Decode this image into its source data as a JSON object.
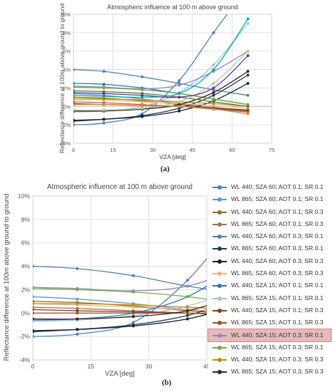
{
  "panel_labels": {
    "a": "(a)",
    "b": "(b)"
  },
  "chart_data": [
    {
      "id": "a",
      "type": "line",
      "title": "Atmospheric influence at 100 m above ground",
      "xlabel": "VZA [deg]",
      "ylabel": "Reflectance difference at 100m above ground to ground",
      "xlim": [
        0,
        75
      ],
      "ylim": [
        -0.04,
        0.1
      ],
      "xticks": [
        0,
        15,
        30,
        45,
        60,
        75
      ],
      "yticks": [
        -0.04,
        -0.02,
        0,
        0.02,
        0.04,
        0.06,
        0.08,
        0.1
      ],
      "xtick_labels": [
        "0",
        "15",
        "30",
        "45",
        "60",
        "75"
      ],
      "ytick_labels": [
        "-4%",
        "-2%",
        "0%",
        "2%",
        "4%",
        "6%",
        "8%",
        "10%"
      ],
      "grid": true,
      "x": [
        0,
        11.5,
        26,
        40,
        53,
        66
      ],
      "series": [
        {
          "color": "#4f81bd",
          "values": [
            0.04,
            0.038,
            0.032,
            0.025,
            0.018,
            0.012
          ]
        },
        {
          "color": "#5b9bd5",
          "values": [
            0.014,
            0.012,
            0.008,
            0.003,
            -0.001,
            -0.004
          ]
        },
        {
          "color": "#8a6d1f",
          "values": [
            0.01,
            0.009,
            0.006,
            0.002,
            -0.002,
            -0.005
          ]
        },
        {
          "color": "#b06a4b",
          "values": [
            0.005,
            0.004,
            0.002,
            0.0,
            -0.003,
            -0.006
          ]
        },
        {
          "color": "#4f81bd",
          "values": [
            -0.02,
            -0.018,
            -0.008,
            0.028,
            0.08,
            0.13
          ]
        },
        {
          "color": "#1f3864",
          "values": [
            -0.016,
            -0.014,
            -0.01,
            -0.002,
            0.012,
            0.034
          ]
        },
        {
          "color": "#17202e",
          "values": [
            -0.015,
            -0.014,
            -0.011,
            -0.005,
            0.006,
            0.025
          ]
        },
        {
          "color": "#f4b183",
          "values": [
            0.008,
            0.007,
            0.005,
            0.003,
            0.001,
            -0.002
          ]
        },
        {
          "color": "#2e75b6",
          "values": [
            0.025,
            0.024,
            0.02,
            0.014,
            0.008,
            0.002
          ]
        },
        {
          "color": "#9dc3e6",
          "values": [
            -0.006,
            -0.005,
            0.0,
            0.015,
            0.045,
            0.09
          ]
        },
        {
          "color": "#843c0c",
          "values": [
            0.003,
            0.002,
            0.001,
            0.0,
            -0.002,
            -0.004
          ]
        },
        {
          "color": "#8e86c4",
          "values": [
            0.022,
            0.021,
            0.019,
            0.023,
            0.038,
            0.06
          ]
        },
        {
          "color": "#70ad47",
          "values": [
            0.021,
            0.02,
            0.018,
            0.014,
            0.008,
            0.002
          ]
        },
        {
          "color": "#c09000",
          "values": [
            0.008,
            0.008,
            0.007,
            0.005,
            0.003,
            0.0
          ]
        },
        {
          "color": "#3b2318",
          "values": [
            -0.005,
            -0.005,
            -0.003,
            0.002,
            0.015,
            0.038
          ]
        },
        {
          "color": "#548235",
          "values": [
            0.017,
            0.016,
            0.014,
            0.01,
            0.005,
            0.0
          ]
        },
        {
          "color": "#a9d18e",
          "values": [
            -0.004,
            -0.004,
            -0.002,
            0.005,
            0.025,
            0.06
          ]
        },
        {
          "color": "#00b0a0",
          "values": [
            0.012,
            0.011,
            0.01,
            0.014,
            0.04,
            0.095
          ]
        },
        {
          "color": "#ed7d31",
          "values": [
            0.002,
            0.002,
            0.001,
            0.0,
            -0.003,
            -0.008
          ]
        },
        {
          "color": "#7030a0",
          "values": [
            0.015,
            0.014,
            0.012,
            0.01,
            0.02,
            0.055
          ]
        }
      ]
    },
    {
      "id": "b",
      "type": "line",
      "title": "Atmospheric influence at 100 m above ground",
      "xlabel": "VZA [deg]",
      "ylabel": "Reflectance difference at 100m above ground to ground",
      "xlim": [
        0,
        45
      ],
      "ylim": [
        -0.04,
        0.1
      ],
      "xticks": [
        0,
        15,
        30,
        45
      ],
      "yticks": [
        -0.04,
        -0.02,
        0,
        0.02,
        0.04,
        0.06,
        0.08,
        0.1
      ],
      "xtick_labels": [
        "0",
        "15",
        "30",
        "45"
      ],
      "ytick_labels": [
        "-4%",
        "-2%",
        "0%",
        "2%",
        "4%",
        "6%",
        "8%",
        "10%"
      ],
      "grid": true,
      "legend_position": "right",
      "x": [
        0,
        11.5,
        26,
        40,
        53
      ],
      "series": [
        {
          "name": "WL 440; SZA 60; AOT 0.1; SR 0.1",
          "color": "#4f81bd",
          "values": [
            0.04,
            0.038,
            0.032,
            0.023,
            0.017
          ]
        },
        {
          "name": "WL 865; SZA 60; AOT 0.1; SR 0.1",
          "color": "#5b9bd5",
          "values": [
            0.014,
            0.012,
            0.008,
            0.003,
            0.0
          ]
        },
        {
          "name": "WL 440; SZA 60; AOT 0.1; SR 0.3",
          "color": "#8a6d1f",
          "values": [
            0.01,
            0.009,
            0.006,
            0.002,
            -0.001
          ]
        },
        {
          "name": "WL 865; SZA 60; AOT 0.1; SR 0.3",
          "color": "#b06a4b",
          "values": [
            0.005,
            0.004,
            0.002,
            0.0,
            -0.002
          ]
        },
        {
          "name": "WL 440; SZA 60; AOT 0.3; SR 0.1",
          "color": "#4f81bd",
          "values": [
            -0.02,
            -0.018,
            -0.008,
            0.028,
            0.08
          ]
        },
        {
          "name": "WL 865; SZA 60; AOT 0.3; SR 0.1",
          "color": "#1f3864",
          "values": [
            -0.016,
            -0.014,
            -0.01,
            -0.002,
            0.012
          ]
        },
        {
          "name": "WL 440; SZA 60; AOT 0.3; SR 0.3",
          "color": "#17202e",
          "values": [
            -0.015,
            -0.014,
            -0.011,
            -0.005,
            0.006
          ]
        },
        {
          "name": "WL 865; SZA 60; AOT 0.3; SR 0.3",
          "color": "#f4b183",
          "values": [
            0.008,
            0.007,
            0.005,
            0.003,
            0.001
          ]
        },
        {
          "name": "WL 440; SZA 15; AOT 0.1; SR 0.1",
          "color": "#2e75b6",
          "values": [
            -0.006,
            -0.005,
            0.0,
            0.014,
            0.04
          ]
        },
        {
          "name": "WL 865; SZA 15; AOT 0.1; SR 0.1",
          "color": "#9dc3e6",
          "values": [
            -0.007,
            -0.006,
            -0.002,
            0.006,
            0.02
          ]
        },
        {
          "name": "WL 440; SZA 15; AOT 0.1; SR 0.3",
          "color": "#843c0c",
          "values": [
            0.003,
            0.002,
            0.001,
            0.0,
            -0.002
          ]
        },
        {
          "name": "WL 865; SZA 15; AOT 0.1; SR 0.3",
          "color": "#a0522d",
          "values": [
            0.0,
            0.0,
            0.0,
            0.0,
            -0.001
          ]
        },
        {
          "name": "WL 440; SZA 15; AOT 0.3; SR 0.1",
          "color": "#8e86c4",
          "values": [
            0.022,
            0.021,
            0.019,
            0.023,
            0.038
          ]
        },
        {
          "name": "WL 865; SZA 15; AOT 0.3; SR 0.1",
          "color": "#70ad47",
          "values": [
            0.021,
            0.02,
            0.018,
            0.014,
            0.008
          ]
        },
        {
          "name": "WL 440; SZA 15; AOT 0.3; SR 0.3",
          "color": "#c09000",
          "values": [
            0.008,
            0.008,
            0.007,
            0.005,
            0.003
          ]
        },
        {
          "name": "WL 865; SZA 15; AOT 0.3; SR 0.3",
          "color": "#3b2318",
          "values": [
            -0.005,
            -0.005,
            -0.003,
            0.002,
            0.015
          ]
        }
      ],
      "highlighted_series": 12
    }
  ]
}
